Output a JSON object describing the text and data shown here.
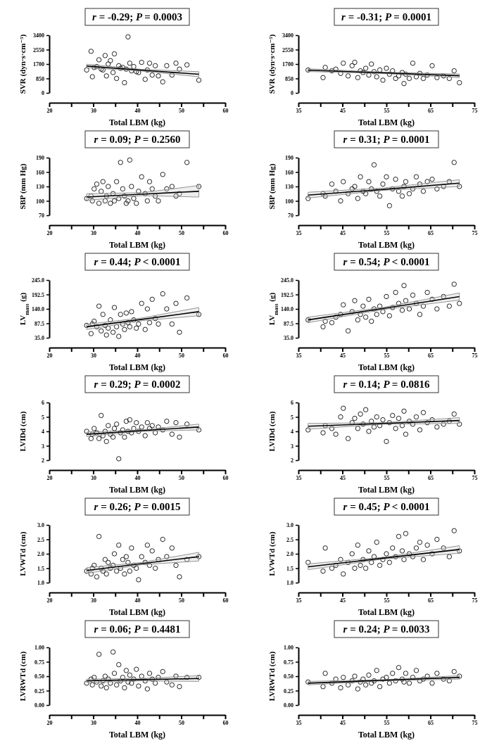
{
  "chart_data": [
    {
      "type": "scatter",
      "title": "r = -0.29; P = 0.0003",
      "xlabel": "Total LBM (kg)",
      "ylabel": "SVR (dyn·s·cm⁻⁵)",
      "xlim": [
        20,
        60
      ],
      "xticks": [
        20,
        30,
        40,
        50,
        60
      ],
      "ylim": [
        0,
        3400
      ],
      "yticks": [
        0,
        850,
        1700,
        2550,
        3400
      ],
      "marker": "circle",
      "series": [
        {
          "type": "scatter",
          "color": "#222222",
          "x": [
            28.5,
            29.5,
            29.8,
            30.2,
            30.8,
            31.3,
            31.8,
            32.2,
            32.7,
            33.0,
            33.4,
            33.9,
            34.5,
            34.8,
            35.3,
            35.8,
            36.2,
            36.7,
            37.1,
            37.5,
            37.9,
            38.3,
            38.7,
            39.2,
            39.8,
            40.3,
            41.0,
            41.8,
            42.3,
            42.8,
            43.4,
            44.1,
            44.8,
            45.8,
            46.7,
            47.9,
            48.8,
            49.6,
            51.3,
            54.0
          ],
          "values": [
            1350,
            2450,
            950,
            1500,
            1550,
            1950,
            1400,
            1350,
            2200,
            1000,
            1700,
            1900,
            1200,
            2300,
            850,
            1600,
            1450,
            1500,
            600,
            1400,
            3300,
            1750,
            1300,
            1550,
            1250,
            1200,
            1800,
            800,
            1350,
            1750,
            1050,
            1600,
            1000,
            650,
            1600,
            1050,
            1750,
            1400,
            1650,
            750
          ]
        },
        {
          "type": "line",
          "marker": "none",
          "color": "#000000",
          "x": [
            28.5,
            41,
            54
          ],
          "values": [
            1580,
            1340,
            1100
          ],
          "lower": [
            1480,
            1290,
            950
          ],
          "upper": [
            1690,
            1390,
            1250
          ]
        }
      ]
    },
    {
      "type": "scatter",
      "title": "r = -0.31; P = 0.0001",
      "xlabel": "Total LBM (kg)",
      "ylabel": "SVR (dyn·s·cm⁻⁵)",
      "xlim": [
        35,
        75
      ],
      "xticks": [
        35,
        45,
        55,
        65,
        75
      ],
      "ylim": [
        0,
        3400
      ],
      "yticks": [
        0,
        850,
        1700,
        2550,
        3400
      ],
      "marker": "circle",
      "series": [
        {
          "type": "scatter",
          "color": "#222222",
          "x": [
            37.2,
            40.6,
            41.1,
            42.6,
            43.5,
            44.6,
            45.2,
            46.3,
            47.2,
            47.8,
            48.5,
            49.1,
            49.7,
            50.3,
            51.0,
            51.6,
            52.2,
            52.8,
            53.5,
            54.2,
            55.0,
            55.7,
            56.4,
            57.1,
            57.8,
            58.6,
            59.0,
            59.4,
            60.2,
            61.0,
            61.8,
            62.6,
            63.4,
            64.3,
            65.4,
            66.5,
            68.0,
            69.3,
            70.4,
            71.6
          ],
          "values": [
            1350,
            900,
            1500,
            1300,
            1400,
            1150,
            1750,
            1000,
            1600,
            1800,
            900,
            1300,
            1200,
            1450,
            1050,
            1700,
            1250,
            950,
            1350,
            750,
            1450,
            1100,
            1300,
            850,
            1000,
            1200,
            550,
            1100,
            850,
            1750,
            950,
            1150,
            850,
            1050,
            1600,
            900,
            1000,
            850,
            1300,
            600
          ]
        },
        {
          "type": "line",
          "marker": "none",
          "color": "#000000",
          "x": [
            37.2,
            54.4,
            71.6
          ],
          "values": [
            1340,
            1180,
            1010
          ],
          "lower": [
            1260,
            1140,
            900
          ],
          "upper": [
            1420,
            1220,
            1110
          ]
        }
      ]
    },
    {
      "type": "scatter",
      "title": "r = 0.09; P = 0.2560",
      "xlabel": "Total LBM (kg)",
      "ylabel": "SBP (mm Hg)",
      "xlim": [
        20,
        60
      ],
      "xticks": [
        20,
        30,
        40,
        50,
        60
      ],
      "ylim": [
        70,
        190
      ],
      "yticks": [
        70,
        100,
        130,
        160,
        190
      ],
      "marker": "circle",
      "series": [
        {
          "type": "scatter",
          "color": "#222222",
          "x": [
            28.5,
            29.5,
            29.8,
            30.2,
            30.8,
            31.3,
            31.8,
            32.2,
            32.7,
            33.0,
            33.4,
            33.9,
            34.5,
            34.8,
            35.3,
            35.8,
            36.2,
            36.7,
            37.1,
            37.5,
            37.9,
            38.3,
            38.7,
            39.2,
            39.8,
            40.3,
            41.0,
            41.8,
            42.3,
            42.8,
            43.4,
            44.1,
            44.8,
            45.8,
            46.7,
            47.9,
            48.8,
            49.6,
            51.3,
            54.0
          ],
          "values": [
            105,
            110,
            100,
            125,
            135,
            95,
            120,
            140,
            100,
            110,
            130,
            95,
            115,
            100,
            140,
            105,
            180,
            125,
            110,
            95,
            100,
            185,
            130,
            105,
            95,
            120,
            150,
            115,
            100,
            140,
            125,
            110,
            100,
            155,
            125,
            130,
            110,
            115,
            180,
            130
          ]
        },
        {
          "type": "line",
          "marker": "none",
          "color": "#000000",
          "x": [
            28.5,
            41,
            54
          ],
          "values": [
            108,
            114,
            120
          ],
          "lower": [
            101,
            111,
            108
          ],
          "upper": [
            115,
            117,
            132
          ]
        }
      ]
    },
    {
      "type": "scatter",
      "title": "r = 0.31; P = 0.0001",
      "xlabel": "Total LBM (kg)",
      "ylabel": "SBP (mm Hg)",
      "xlim": [
        35,
        75
      ],
      "xticks": [
        35,
        45,
        55,
        65,
        75
      ],
      "ylim": [
        70,
        190
      ],
      "yticks": [
        70,
        100,
        130,
        160,
        190
      ],
      "marker": "circle",
      "series": [
        {
          "type": "scatter",
          "color": "#222222",
          "x": [
            37.2,
            40.6,
            41.1,
            42.6,
            43.5,
            44.6,
            45.2,
            46.3,
            47.2,
            47.8,
            48.5,
            49.1,
            49.7,
            50.3,
            51.0,
            51.6,
            52.2,
            52.8,
            53.5,
            54.2,
            55.0,
            55.7,
            56.4,
            57.1,
            57.8,
            58.6,
            59.0,
            59.4,
            60.2,
            61.0,
            61.8,
            62.6,
            63.4,
            64.3,
            65.4,
            66.5,
            68.0,
            69.3,
            70.4,
            71.6
          ],
          "values": [
            105,
            115,
            110,
            135,
            120,
            100,
            140,
            115,
            125,
            130,
            105,
            150,
            120,
            115,
            140,
            125,
            175,
            120,
            110,
            135,
            150,
            90,
            125,
            145,
            120,
            110,
            130,
            140,
            115,
            125,
            150,
            135,
            120,
            140,
            145,
            125,
            130,
            140,
            180,
            130
          ]
        },
        {
          "type": "line",
          "marker": "none",
          "color": "#000000",
          "x": [
            37.2,
            54.4,
            71.6
          ],
          "values": [
            112,
            124,
            137
          ],
          "lower": [
            106,
            122,
            130
          ],
          "upper": [
            118,
            127,
            144
          ]
        }
      ]
    },
    {
      "type": "scatter",
      "title": "r = 0.44; P < 0.0001",
      "xlabel": "Total LBM (kg)",
      "ylabel": "LV$_{mass}$ (g)",
      "xlim": [
        20,
        60
      ],
      "xticks": [
        20,
        30,
        40,
        50,
        60
      ],
      "ylim": [
        35,
        245
      ],
      "yticks": [
        {
          "value": 35,
          "label": "35.0"
        },
        {
          "value": 87.5,
          "label": "87.5"
        },
        {
          "value": 140,
          "label": "140.0"
        },
        {
          "value": 192.5,
          "label": "192.5"
        },
        {
          "value": 245,
          "label": "245.0"
        }
      ],
      "marker": "circle",
      "series": [
        {
          "type": "scatter",
          "color": "#222222",
          "x": [
            28.5,
            29.5,
            29.8,
            30.2,
            30.8,
            31.3,
            31.8,
            32.2,
            32.7,
            33.0,
            33.4,
            33.9,
            34.5,
            34.8,
            35.3,
            35.8,
            36.2,
            36.7,
            37.1,
            37.5,
            37.9,
            38.3,
            38.7,
            39.2,
            39.8,
            40.3,
            41.0,
            41.8,
            42.3,
            42.8,
            43.4,
            44.1,
            44.8,
            45.8,
            46.7,
            47.9,
            48.8,
            49.6,
            51.3,
            54.0
          ],
          "values": [
            80,
            50,
            85,
            95,
            75,
            150,
            60,
            120,
            80,
            45,
            70,
            100,
            55,
            145,
            75,
            40,
            120,
            85,
            65,
            125,
            90,
            75,
            130,
            100,
            70,
            85,
            160,
            65,
            140,
            90,
            175,
            105,
            85,
            195,
            140,
            85,
            160,
            55,
            180,
            120
          ]
        },
        {
          "type": "line",
          "marker": "none",
          "color": "#000000",
          "x": [
            28.5,
            41,
            54
          ],
          "values": [
            75,
            102,
            130
          ],
          "lower": [
            65,
            97,
            115
          ],
          "upper": [
            84,
            107,
            145
          ]
        }
      ]
    },
    {
      "type": "scatter",
      "title": "r = 0.54; P < 0.0001",
      "xlabel": "Total LBM (kg)",
      "ylabel": "LV$_{mass}$ (g)",
      "xlim": [
        35,
        75
      ],
      "xticks": [
        35,
        45,
        55,
        65,
        75
      ],
      "ylim": [
        35,
        245
      ],
      "yticks": [
        {
          "value": 35,
          "label": "35.0"
        },
        {
          "value": 87.5,
          "label": "87.5"
        },
        {
          "value": 140,
          "label": "140.0"
        },
        {
          "value": 192.5,
          "label": "192.5"
        },
        {
          "value": 245,
          "label": "245.0"
        }
      ],
      "marker": "circle",
      "series": [
        {
          "type": "scatter",
          "color": "#222222",
          "x": [
            37.2,
            40.6,
            41.1,
            42.6,
            43.5,
            44.6,
            45.2,
            46.3,
            47.2,
            47.8,
            48.5,
            49.1,
            49.7,
            50.3,
            51.0,
            51.6,
            52.2,
            52.8,
            53.5,
            54.2,
            55.0,
            55.7,
            56.4,
            57.1,
            57.8,
            58.6,
            59.0,
            59.4,
            60.2,
            61.0,
            61.8,
            62.6,
            63.4,
            64.3,
            65.4,
            66.5,
            68.0,
            69.3,
            70.4,
            71.6
          ],
          "values": [
            100,
            75,
            95,
            90,
            110,
            120,
            155,
            60,
            130,
            170,
            100,
            120,
            150,
            110,
            175,
            95,
            140,
            120,
            150,
            130,
            185,
            115,
            145,
            200,
            160,
            135,
            225,
            170,
            140,
            190,
            160,
            120,
            150,
            200,
            175,
            140,
            185,
            150,
            230,
            160
          ]
        },
        {
          "type": "line",
          "marker": "none",
          "color": "#000000",
          "x": [
            37.2,
            54.4,
            71.6
          ],
          "values": [
            100,
            142,
            185
          ],
          "lower": [
            90,
            138,
            172
          ],
          "upper": [
            110,
            146,
            198
          ]
        }
      ]
    },
    {
      "type": "scatter",
      "title": "r = 0.29; P = 0.0002",
      "xlabel": "Total LBM (kg)",
      "ylabel": "LVIDd (cm)",
      "xlim": [
        20,
        60
      ],
      "xticks": [
        20,
        30,
        40,
        50,
        60
      ],
      "ylim": [
        2,
        6
      ],
      "yticks": [
        2,
        3,
        4,
        5,
        6
      ],
      "marker": "circle",
      "series": [
        {
          "type": "scatter",
          "color": "#222222",
          "x": [
            28.5,
            29.5,
            29.8,
            30.2,
            30.8,
            31.3,
            31.8,
            32.2,
            32.7,
            33.0,
            33.4,
            33.9,
            34.5,
            34.8,
            35.3,
            35.8,
            36.2,
            36.7,
            37.1,
            37.5,
            37.9,
            38.3,
            38.7,
            39.2,
            39.8,
            40.3,
            41.0,
            41.8,
            42.3,
            42.8,
            43.4,
            44.1,
            44.8,
            45.8,
            46.7,
            47.9,
            48.8,
            49.6,
            51.3,
            54.0
          ],
          "values": [
            4.0,
            3.5,
            3.8,
            4.2,
            3.9,
            3.5,
            5.1,
            3.7,
            4.0,
            3.3,
            4.4,
            3.8,
            3.6,
            4.2,
            4.5,
            2.1,
            3.9,
            4.1,
            3.6,
            4.7,
            4.0,
            4.8,
            3.9,
            4.2,
            4.6,
            4.0,
            4.3,
            3.7,
            4.6,
            4.2,
            4.4,
            3.9,
            4.3,
            4.1,
            4.7,
            3.8,
            4.6,
            3.6,
            4.5,
            4.1
          ]
        },
        {
          "type": "line",
          "marker": "none",
          "color": "#000000",
          "x": [
            28.5,
            41,
            54
          ],
          "values": [
            3.8,
            4.05,
            4.3
          ],
          "lower": [
            3.65,
            4.0,
            4.1
          ],
          "upper": [
            3.95,
            4.1,
            4.5
          ]
        }
      ]
    },
    {
      "type": "scatter",
      "title": "r = 0.14; P = 0.0816",
      "xlabel": "Total LBM (kg)",
      "ylabel": "LVIDd (cm)",
      "xlim": [
        35,
        75
      ],
      "xticks": [
        35,
        45,
        55,
        65,
        75
      ],
      "ylim": [
        2,
        6
      ],
      "yticks": [
        2,
        3,
        4,
        5,
        6
      ],
      "marker": "circle",
      "series": [
        {
          "type": "scatter",
          "color": "#222222",
          "x": [
            37.2,
            40.6,
            41.1,
            42.6,
            43.5,
            44.6,
            45.2,
            46.3,
            47.2,
            47.8,
            48.5,
            49.1,
            49.7,
            50.3,
            51.0,
            51.6,
            52.2,
            52.8,
            53.5,
            54.2,
            55.0,
            55.7,
            56.4,
            57.1,
            57.8,
            58.6,
            59.0,
            59.4,
            60.2,
            61.0,
            61.8,
            62.6,
            63.4,
            64.3,
            65.4,
            66.5,
            68.0,
            69.3,
            70.4,
            71.6
          ],
          "values": [
            4.1,
            3.9,
            4.4,
            4.2,
            3.8,
            5.0,
            5.6,
            3.5,
            4.6,
            4.9,
            4.2,
            5.2,
            4.5,
            5.5,
            4.0,
            4.7,
            4.3,
            5.0,
            4.4,
            4.8,
            3.3,
            4.6,
            5.1,
            4.2,
            4.9,
            4.4,
            5.4,
            3.8,
            4.7,
            4.5,
            5.0,
            4.1,
            5.3,
            4.6,
            4.8,
            4.3,
            4.5,
            4.7,
            5.2,
            4.5
          ]
        },
        {
          "type": "line",
          "marker": "none",
          "color": "#000000",
          "x": [
            37.2,
            54.4,
            71.6
          ],
          "values": [
            4.35,
            4.55,
            4.75
          ],
          "lower": [
            4.15,
            4.5,
            4.55
          ],
          "upper": [
            4.55,
            4.6,
            4.95
          ]
        }
      ]
    },
    {
      "type": "scatter",
      "title": "r = 0.26; P = 0.0015",
      "xlabel": "Total LBM (kg)",
      "ylabel": "LVWTd (cm)",
      "xlim": [
        20,
        60
      ],
      "xticks": [
        20,
        30,
        40,
        50,
        60
      ],
      "ylim": [
        1,
        3
      ],
      "yticks": [
        {
          "value": 1,
          "label": "1.0"
        },
        1.5,
        {
          "value": 2,
          "label": "2.0"
        },
        2.5,
        {
          "value": 3,
          "label": "3.0"
        }
      ],
      "marker": "circle",
      "series": [
        {
          "type": "scatter",
          "color": "#222222",
          "x": [
            28.5,
            29.5,
            29.8,
            30.2,
            30.8,
            31.3,
            31.8,
            32.2,
            32.7,
            33.0,
            33.4,
            33.9,
            34.5,
            34.8,
            35.3,
            35.8,
            36.2,
            36.7,
            37.1,
            37.5,
            37.9,
            38.3,
            38.7,
            39.2,
            39.8,
            40.3,
            41.0,
            41.8,
            42.3,
            42.8,
            43.4,
            44.1,
            44.8,
            45.8,
            46.7,
            47.9,
            48.8,
            49.6,
            51.3,
            54.0
          ],
          "values": [
            1.4,
            1.3,
            1.5,
            1.6,
            1.2,
            2.6,
            1.5,
            1.4,
            1.8,
            1.3,
            1.7,
            1.5,
            1.6,
            2.0,
            1.4,
            2.3,
            1.5,
            1.8,
            1.3,
            1.9,
            1.7,
            1.4,
            2.2,
            1.6,
            1.5,
            1.1,
            1.9,
            1.7,
            2.3,
            1.6,
            2.1,
            1.5,
            1.8,
            2.5,
            1.9,
            2.2,
            1.6,
            1.2,
            1.8,
            1.9
          ]
        },
        {
          "type": "line",
          "marker": "none",
          "color": "#000000",
          "x": [
            28.5,
            41,
            54
          ],
          "values": [
            1.42,
            1.66,
            1.9
          ],
          "lower": [
            1.32,
            1.62,
            1.75
          ],
          "upper": [
            1.52,
            1.7,
            2.05
          ]
        }
      ]
    },
    {
      "type": "scatter",
      "title": "r = 0.45; P < 0.0001",
      "xlabel": "Total LBM (kg)",
      "ylabel": "LVWTd (cm)",
      "xlim": [
        35,
        75
      ],
      "xticks": [
        35,
        45,
        55,
        65,
        75
      ],
      "ylim": [
        1,
        3
      ],
      "yticks": [
        {
          "value": 1,
          "label": "1.0"
        },
        1.5,
        {
          "value": 2,
          "label": "2.0"
        },
        2.5,
        {
          "value": 3,
          "label": "3.0"
        }
      ],
      "marker": "circle",
      "series": [
        {
          "type": "scatter",
          "color": "#222222",
          "x": [
            37.2,
            40.6,
            41.1,
            42.6,
            43.5,
            44.6,
            45.2,
            46.3,
            47.2,
            47.8,
            48.5,
            49.1,
            49.7,
            50.3,
            51.0,
            51.6,
            52.2,
            52.8,
            53.5,
            54.2,
            55.0,
            55.7,
            56.4,
            57.1,
            57.8,
            58.6,
            59.0,
            59.4,
            60.2,
            61.0,
            61.8,
            62.6,
            63.4,
            64.3,
            65.4,
            66.5,
            68.0,
            69.3,
            70.4,
            71.6
          ],
          "values": [
            1.7,
            1.4,
            2.2,
            1.5,
            1.6,
            1.8,
            1.3,
            1.7,
            2.0,
            1.5,
            2.3,
            1.6,
            1.8,
            1.5,
            2.1,
            1.7,
            1.9,
            2.4,
            1.6,
            1.8,
            2.0,
            1.7,
            2.2,
            1.9,
            2.6,
            2.1,
            1.8,
            2.7,
            2.0,
            1.9,
            2.2,
            2.4,
            1.8,
            2.3,
            2.0,
            2.5,
            2.2,
            1.9,
            2.8,
            2.1
          ]
        },
        {
          "type": "line",
          "marker": "none",
          "color": "#000000",
          "x": [
            37.2,
            54.4,
            71.6
          ],
          "values": [
            1.55,
            1.85,
            2.15
          ],
          "lower": [
            1.45,
            1.82,
            2.02
          ],
          "upper": [
            1.65,
            1.88,
            2.28
          ]
        }
      ]
    },
    {
      "type": "scatter",
      "title": "r = 0.06; P = 0.4481",
      "xlabel": "Total LBM (kg)",
      "ylabel": "LVRWTd (cm)",
      "xlim": [
        20,
        60
      ],
      "xticks": [
        20,
        30,
        40,
        50,
        60
      ],
      "ylim": [
        0,
        1
      ],
      "yticks": [
        {
          "value": 0,
          "label": "0.00"
        },
        0.25,
        {
          "value": 0.5,
          "label": "0.50"
        },
        0.75,
        {
          "value": 1,
          "label": "1.00"
        }
      ],
      "marker": "circle",
      "series": [
        {
          "type": "scatter",
          "color": "#222222",
          "x": [
            28.5,
            29.5,
            29.8,
            30.2,
            30.8,
            31.3,
            31.8,
            32.2,
            32.7,
            33.0,
            33.4,
            33.9,
            34.5,
            34.8,
            35.3,
            35.8,
            36.2,
            36.7,
            37.1,
            37.5,
            37.9,
            38.3,
            38.7,
            39.2,
            39.8,
            40.3,
            41.0,
            41.8,
            42.3,
            42.8,
            43.4,
            44.1,
            44.8,
            45.8,
            46.7,
            47.9,
            48.8,
            49.6,
            51.3,
            54.0
          ],
          "values": [
            0.38,
            0.45,
            0.35,
            0.48,
            0.4,
            0.88,
            0.33,
            0.42,
            0.5,
            0.3,
            0.45,
            0.38,
            0.92,
            0.55,
            0.35,
            0.7,
            0.42,
            0.48,
            0.3,
            0.6,
            0.4,
            0.52,
            0.38,
            0.45,
            0.62,
            0.33,
            0.5,
            0.42,
            0.28,
            0.55,
            0.45,
            0.38,
            0.48,
            0.58,
            0.4,
            0.35,
            0.5,
            0.32,
            0.48,
            0.48
          ]
        },
        {
          "type": "line",
          "marker": "none",
          "color": "#000000",
          "x": [
            28.5,
            41,
            54
          ],
          "values": [
            0.42,
            0.44,
            0.46
          ],
          "lower": [
            0.39,
            0.42,
            0.41
          ],
          "upper": [
            0.45,
            0.46,
            0.51
          ]
        }
      ]
    },
    {
      "type": "scatter",
      "title": "r = 0.24; P = 0.0033",
      "xlabel": "Total LBM (kg)",
      "ylabel": "LVRWTd (cm)",
      "xlim": [
        35,
        75
      ],
      "xticks": [
        35,
        45,
        55,
        65,
        75
      ],
      "ylim": [
        0,
        1
      ],
      "yticks": [
        {
          "value": 0,
          "label": "0.00"
        },
        0.25,
        {
          "value": 0.5,
          "label": "0.50"
        },
        0.75,
        {
          "value": 1,
          "label": "1.00"
        }
      ],
      "marker": "circle",
      "series": [
        {
          "type": "scatter",
          "color": "#222222",
          "x": [
            37.2,
            40.6,
            41.1,
            42.6,
            43.5,
            44.6,
            45.2,
            46.3,
            47.2,
            47.8,
            48.5,
            49.1,
            49.7,
            50.3,
            51.0,
            51.6,
            52.2,
            52.8,
            53.5,
            54.2,
            55.0,
            55.7,
            56.4,
            57.1,
            57.8,
            58.6,
            59.0,
            59.4,
            60.2,
            61.0,
            61.8,
            62.6,
            63.4,
            64.3,
            65.4,
            66.5,
            68.0,
            69.3,
            70.4,
            71.6
          ],
          "values": [
            0.4,
            0.32,
            0.55,
            0.38,
            0.45,
            0.3,
            0.48,
            0.35,
            0.42,
            0.5,
            0.28,
            0.4,
            0.45,
            0.35,
            0.52,
            0.38,
            0.42,
            0.6,
            0.32,
            0.45,
            0.48,
            0.38,
            0.55,
            0.42,
            0.65,
            0.45,
            0.4,
            0.55,
            0.38,
            0.48,
            0.6,
            0.42,
            0.45,
            0.5,
            0.38,
            0.55,
            0.45,
            0.42,
            0.58,
            0.5
          ]
        },
        {
          "type": "line",
          "marker": "none",
          "color": "#000000",
          "x": [
            37.2,
            54.4,
            71.6
          ],
          "values": [
            0.38,
            0.43,
            0.48
          ],
          "lower": [
            0.35,
            0.42,
            0.45
          ],
          "upper": [
            0.41,
            0.44,
            0.51
          ]
        }
      ]
    }
  ]
}
